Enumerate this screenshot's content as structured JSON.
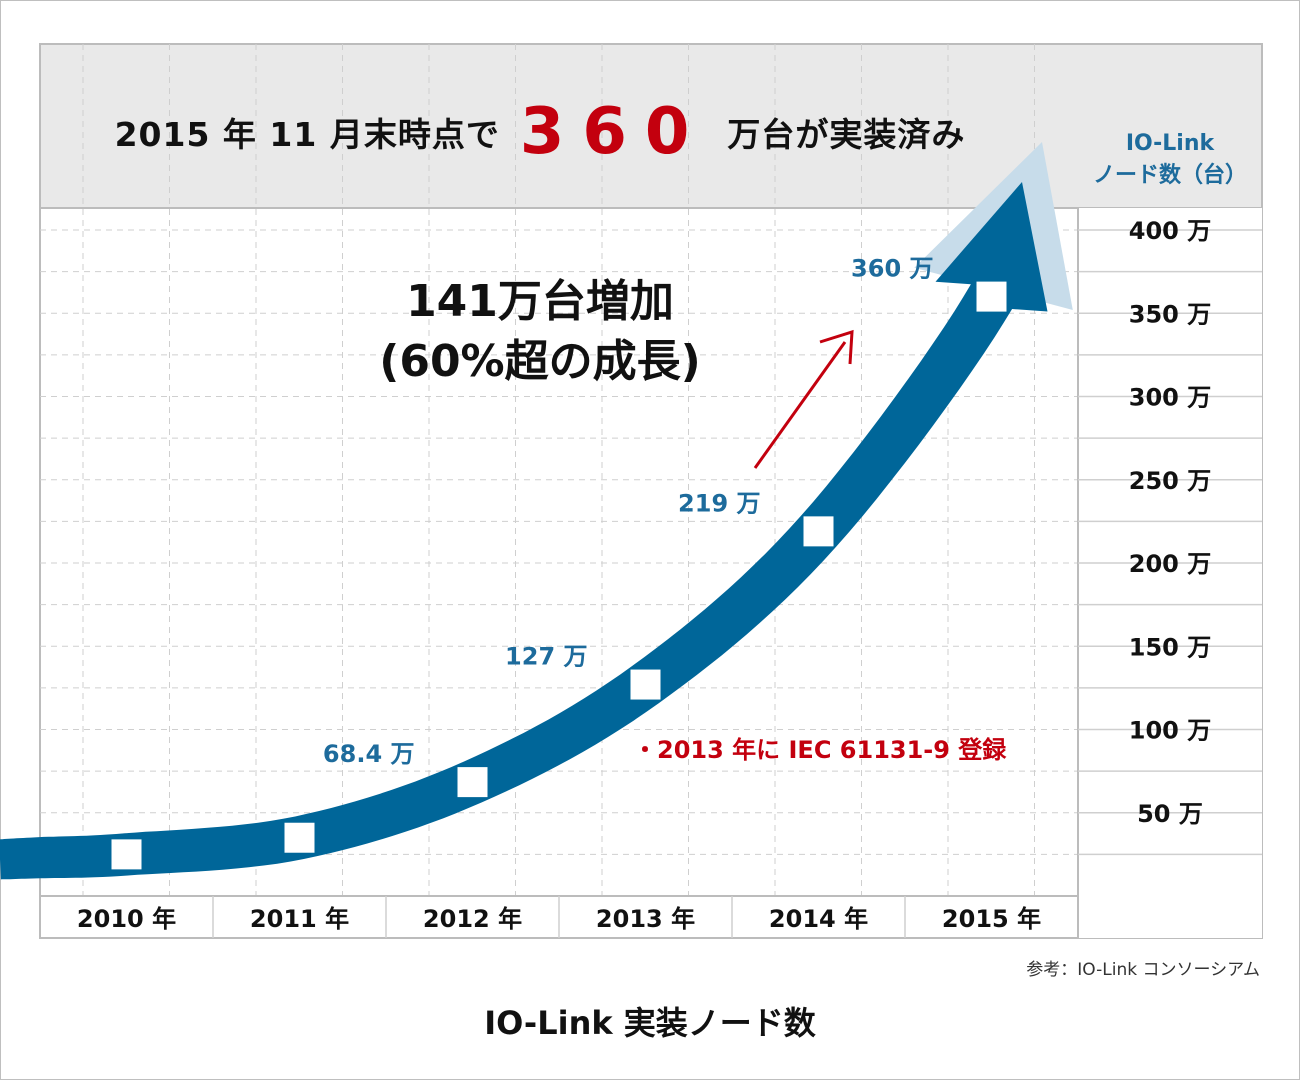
{
  "headline": {
    "prefix": "2015 年 11 月末時点で",
    "big_number": "360",
    "suffix": "万台が実装済み"
  },
  "y_axis_unit": {
    "line1": "IO-Link",
    "line2": "ノード数（台）"
  },
  "growth_text": {
    "line1": "141万台増加",
    "line2": "(60%超の成長)"
  },
  "annotation": "・2013 年に IEC 61131-9 登録",
  "source": "参考：IO-Link コンソーシアム",
  "caption": "IO-Link 実装ノード数",
  "colors": {
    "arrow": "#006699",
    "arrow_head_light": "#c7dcea",
    "highlight_red": "#c3000e",
    "value_label": "#1d6b9c",
    "header_band": "#e9e9e9",
    "grid": "#cfcfcf"
  },
  "chart_data": {
    "type": "line",
    "title": "IO-Link 実装ノード数",
    "categories": [
      "2010 年",
      "2011 年",
      "2012 年",
      "2013 年",
      "2014 年",
      "2015 年"
    ],
    "x_labels": [
      "2010 年",
      "2011 年",
      "2012 年",
      "2013 年",
      "2014 年",
      "2015 年"
    ],
    "values": [
      25,
      35,
      68.4,
      127,
      219,
      360
    ],
    "data_labels": [
      "",
      "",
      "68.4 万",
      "127 万",
      "219 万",
      "360 万"
    ],
    "y_ticks": [
      50,
      100,
      150,
      200,
      250,
      300,
      350,
      400
    ],
    "y_tick_labels": [
      "50 万",
      "100 万",
      "150 万",
      "200 万",
      "250 万",
      "300 万",
      "350 万",
      "400 万"
    ],
    "ylim": [
      0,
      400
    ],
    "grid": true
  }
}
